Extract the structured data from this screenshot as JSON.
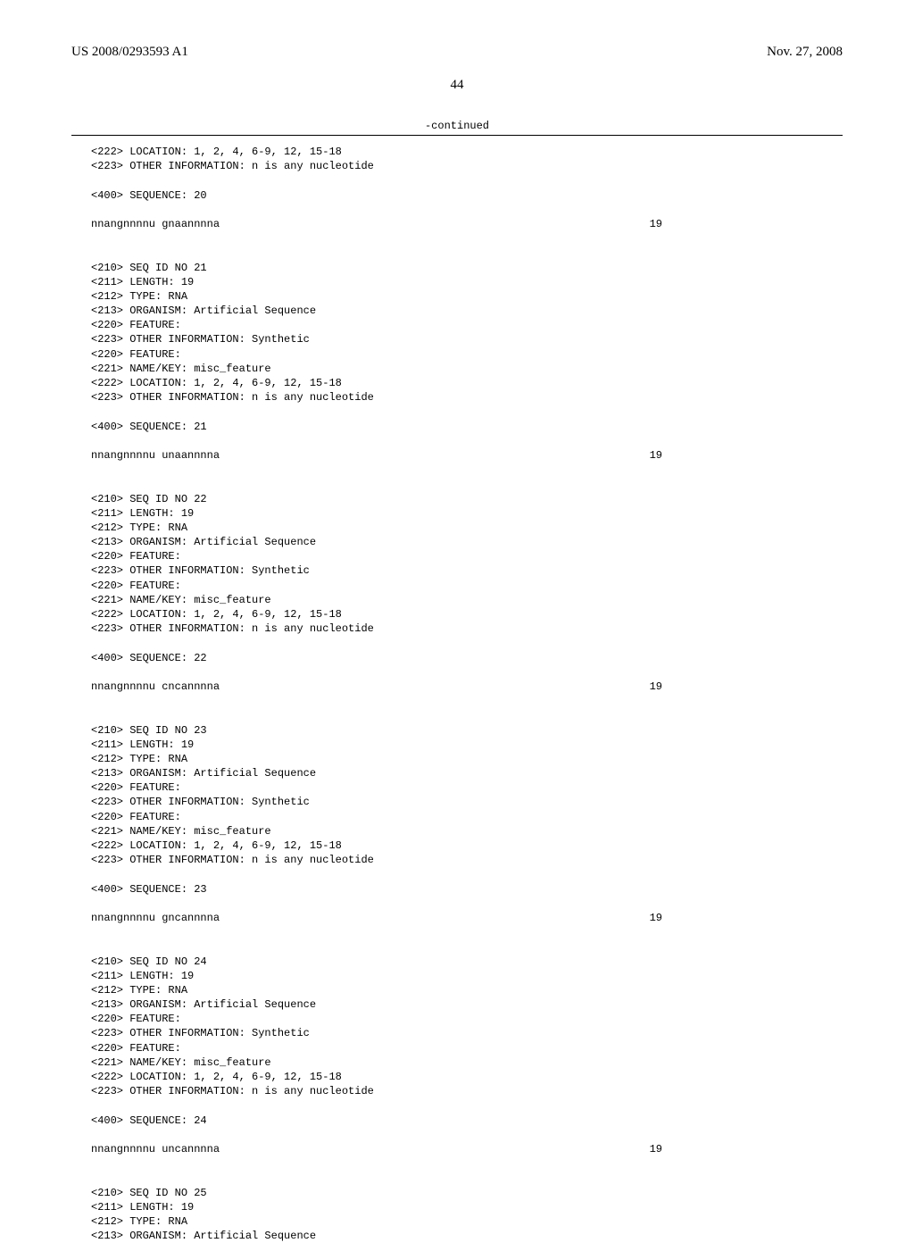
{
  "header": {
    "pub_number": "US 2008/0293593 A1",
    "pub_date": "Nov. 27, 2008"
  },
  "page_number": "44",
  "continued_label": "-continued",
  "seq_length_value": "19",
  "entries": [
    {
      "pre_lines": [
        "<222> LOCATION: 1, 2, 4, 6-9, 12, 15-18",
        "<223> OTHER INFORMATION: n is any nucleotide",
        "",
        "<400> SEQUENCE: 20",
        ""
      ],
      "sequence": "nnangnnnnu gnaannnna"
    },
    {
      "pre_lines": [
        "",
        "",
        "<210> SEQ ID NO 21",
        "<211> LENGTH: 19",
        "<212> TYPE: RNA",
        "<213> ORGANISM: Artificial Sequence",
        "<220> FEATURE:",
        "<223> OTHER INFORMATION: Synthetic",
        "<220> FEATURE:",
        "<221> NAME/KEY: misc_feature",
        "<222> LOCATION: 1, 2, 4, 6-9, 12, 15-18",
        "<223> OTHER INFORMATION: n is any nucleotide",
        "",
        "<400> SEQUENCE: 21",
        ""
      ],
      "sequence": "nnangnnnnu unaannnna"
    },
    {
      "pre_lines": [
        "",
        "",
        "<210> SEQ ID NO 22",
        "<211> LENGTH: 19",
        "<212> TYPE: RNA",
        "<213> ORGANISM: Artificial Sequence",
        "<220> FEATURE:",
        "<223> OTHER INFORMATION: Synthetic",
        "<220> FEATURE:",
        "<221> NAME/KEY: misc_feature",
        "<222> LOCATION: 1, 2, 4, 6-9, 12, 15-18",
        "<223> OTHER INFORMATION: n is any nucleotide",
        "",
        "<400> SEQUENCE: 22",
        ""
      ],
      "sequence": "nnangnnnnu cncannnna"
    },
    {
      "pre_lines": [
        "",
        "",
        "<210> SEQ ID NO 23",
        "<211> LENGTH: 19",
        "<212> TYPE: RNA",
        "<213> ORGANISM: Artificial Sequence",
        "<220> FEATURE:",
        "<223> OTHER INFORMATION: Synthetic",
        "<220> FEATURE:",
        "<221> NAME/KEY: misc_feature",
        "<222> LOCATION: 1, 2, 4, 6-9, 12, 15-18",
        "<223> OTHER INFORMATION: n is any nucleotide",
        "",
        "<400> SEQUENCE: 23",
        ""
      ],
      "sequence": "nnangnnnnu gncannnna"
    },
    {
      "pre_lines": [
        "",
        "",
        "<210> SEQ ID NO 24",
        "<211> LENGTH: 19",
        "<212> TYPE: RNA",
        "<213> ORGANISM: Artificial Sequence",
        "<220> FEATURE:",
        "<223> OTHER INFORMATION: Synthetic",
        "<220> FEATURE:",
        "<221> NAME/KEY: misc_feature",
        "<222> LOCATION: 1, 2, 4, 6-9, 12, 15-18",
        "<223> OTHER INFORMATION: n is any nucleotide",
        "",
        "<400> SEQUENCE: 24",
        ""
      ],
      "sequence": "nnangnnnnu uncannnna"
    },
    {
      "pre_lines": [
        "",
        "",
        "<210> SEQ ID NO 25",
        "<211> LENGTH: 19",
        "<212> TYPE: RNA",
        "<213> ORGANISM: Artificial Sequence"
      ],
      "sequence": null
    }
  ]
}
